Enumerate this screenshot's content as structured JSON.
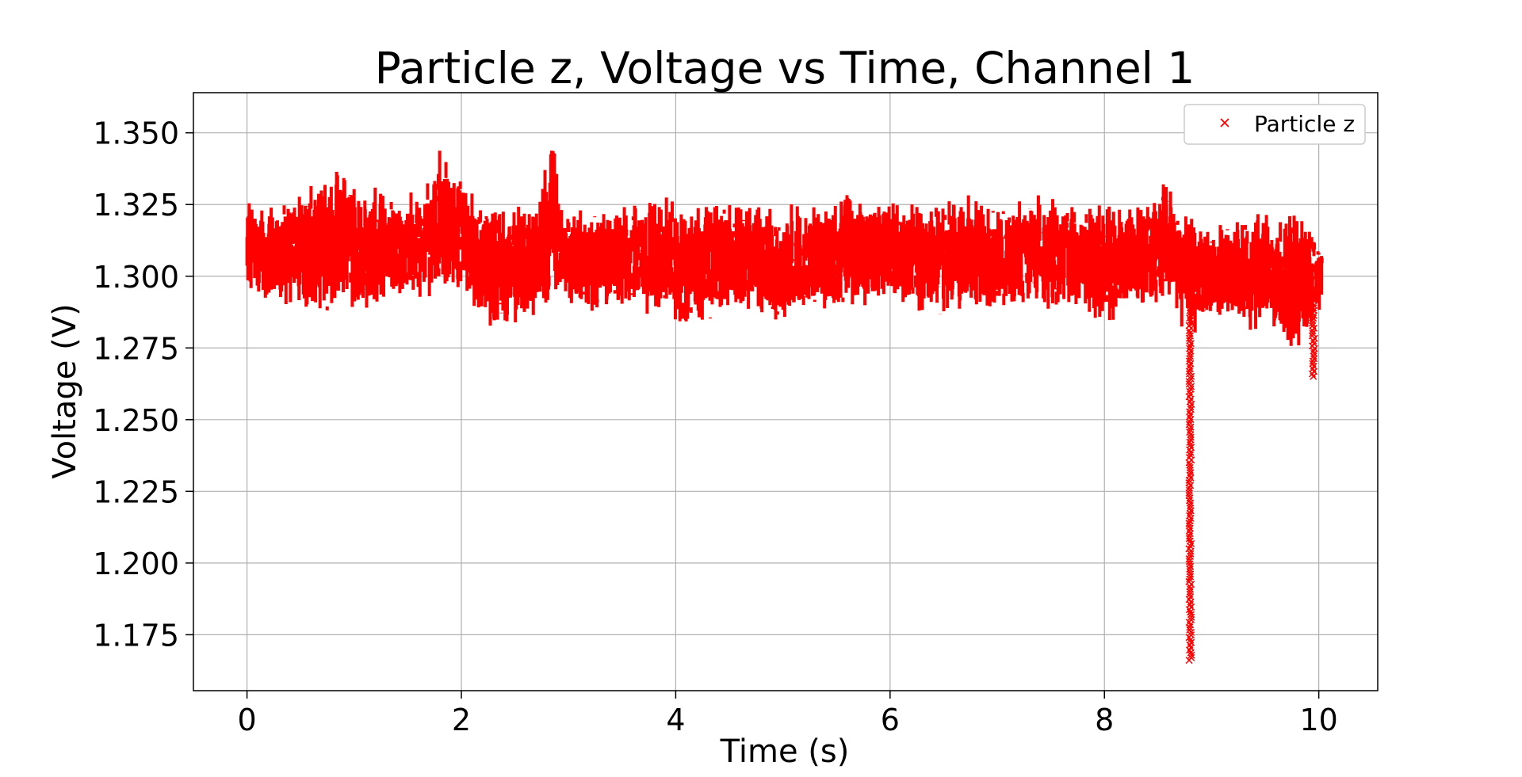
{
  "chart_data": {
    "type": "scatter",
    "title": "Particle z, Voltage vs Time, Channel 1",
    "xlabel": "Time (s)",
    "ylabel": "Voltage (V)",
    "xlim": [
      -0.5,
      10.55
    ],
    "ylim": [
      1.1555,
      1.364
    ],
    "xticks": [
      0,
      2,
      4,
      6,
      8,
      10
    ],
    "xtick_labels": [
      "0",
      "2",
      "4",
      "6",
      "8",
      "10"
    ],
    "yticks": [
      1.175,
      1.2,
      1.225,
      1.25,
      1.275,
      1.3,
      1.325,
      1.35
    ],
    "ytick_labels": [
      "1.175",
      "1.200",
      "1.225",
      "1.250",
      "1.275",
      "1.300",
      "1.325",
      "1.350"
    ],
    "grid": true,
    "legend_position": "top-right",
    "marker": "x",
    "series": [
      {
        "name": "Particle z",
        "color": "#ff0000",
        "envelope": {
          "x": [
            0.0,
            0.1,
            0.3,
            0.5,
            0.7,
            0.9,
            1.1,
            1.3,
            1.5,
            1.7,
            1.85,
            1.95,
            2.1,
            2.3,
            2.5,
            2.7,
            2.85,
            2.95,
            3.2,
            3.5,
            3.8,
            4.1,
            4.4,
            4.7,
            5.0,
            5.3,
            5.6,
            5.9,
            6.2,
            6.5,
            6.8,
            7.1,
            7.4,
            7.7,
            8.0,
            8.3,
            8.55,
            8.75,
            8.85,
            9.0,
            9.2,
            9.4,
            9.6,
            9.8,
            10.0
          ],
          "y_min": [
            1.296,
            1.29,
            1.284,
            1.287,
            1.282,
            1.288,
            1.283,
            1.288,
            1.29,
            1.292,
            1.295,
            1.292,
            1.287,
            1.281,
            1.283,
            1.286,
            1.29,
            1.29,
            1.286,
            1.288,
            1.286,
            1.279,
            1.284,
            1.285,
            1.281,
            1.287,
            1.288,
            1.289,
            1.287,
            1.284,
            1.288,
            1.286,
            1.288,
            1.287,
            1.283,
            1.287,
            1.29,
            1.28,
            1.279,
            1.285,
            1.283,
            1.279,
            1.282,
            1.266,
            1.287
          ],
          "y_max": [
            1.329,
            1.325,
            1.328,
            1.33,
            1.338,
            1.337,
            1.332,
            1.331,
            1.329,
            1.333,
            1.352,
            1.338,
            1.33,
            1.329,
            1.325,
            1.328,
            1.351,
            1.325,
            1.324,
            1.325,
            1.33,
            1.326,
            1.329,
            1.327,
            1.325,
            1.326,
            1.33,
            1.326,
            1.328,
            1.327,
            1.33,
            1.326,
            1.33,
            1.325,
            1.326,
            1.325,
            1.333,
            1.325,
            1.32,
            1.32,
            1.321,
            1.323,
            1.322,
            1.33,
            1.312
          ]
        },
        "dips": [
          {
            "x": 8.8,
            "y_min": 1.1655
          },
          {
            "x": 9.95,
            "y_min": 1.2645
          }
        ]
      }
    ]
  }
}
